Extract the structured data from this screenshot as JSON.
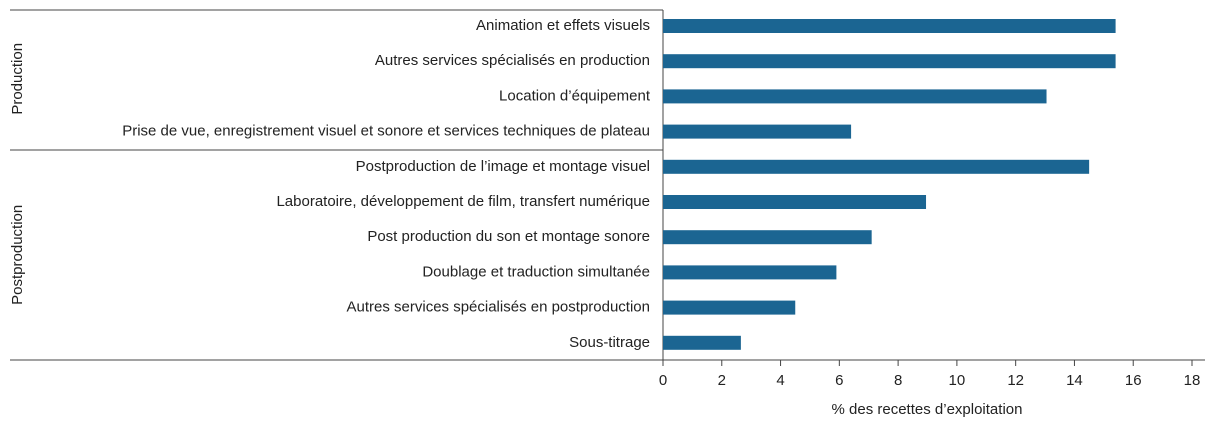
{
  "chart_data": {
    "type": "bar",
    "orientation": "horizontal",
    "color": "#1b6592",
    "groups": [
      {
        "name": "Production",
        "categories": [
          "Animation et effets visuels",
          "Autres services spécialisés en production",
          "Location d’équipement",
          "Prise de vue, enregistrement visuel et sonore et services techniques de plateau"
        ],
        "values": [
          15.4,
          15.4,
          13.05,
          6.4
        ]
      },
      {
        "name": "Postproduction",
        "categories": [
          "Postproduction de l’image et montage visuel",
          "Laboratoire, développement de film, transfert numérique",
          "Post production du son et montage sonore",
          "Doublage et traduction simultanée",
          "Autres services spécialisés en postproduction",
          "Sous-titrage"
        ],
        "values": [
          14.5,
          8.95,
          7.1,
          5.9,
          4.5,
          2.65
        ]
      }
    ],
    "x_label": "% des recettes d’exploitation",
    "xlim": [
      0,
      18
    ],
    "xticks": [
      0,
      2,
      4,
      6,
      8,
      10,
      12,
      14,
      16,
      18
    ]
  }
}
